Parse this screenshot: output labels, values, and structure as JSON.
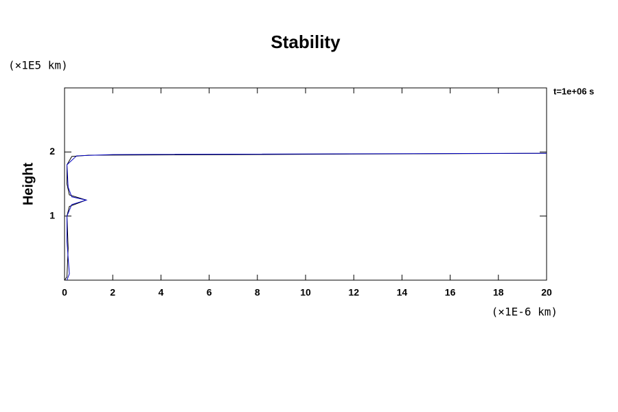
{
  "chart_data": {
    "type": "line",
    "title": "Stability",
    "y_unit": "(×1E5 km)",
    "x_unit": "(×1E-6 km)",
    "y_label": "Height",
    "annotation": "t=1e+06 s",
    "xlim": [
      0,
      20
    ],
    "xticks": [
      0,
      2,
      4,
      6,
      8,
      10,
      12,
      14,
      16,
      18,
      20
    ],
    "ylim": [
      0,
      3
    ],
    "yticks": [
      1,
      2
    ],
    "series": [
      {
        "color": "#000000",
        "x": [
          0,
          0.1,
          0.15,
          0.1,
          0.2,
          0.9,
          0.2,
          0.1,
          0.1,
          0.3,
          1,
          20
        ],
        "values": [
          0,
          0.05,
          0.5,
          1.0,
          1.15,
          1.25,
          1.33,
          1.5,
          1.8,
          1.93,
          1.95,
          1.98
        ]
      },
      {
        "color": "#0000c0",
        "x": [
          0.1,
          0.2,
          0.1,
          0.1,
          0.3,
          0.9,
          0.3,
          0.15,
          0.1,
          0.5,
          2,
          20
        ],
        "values": [
          0,
          0.1,
          0.6,
          1.0,
          1.18,
          1.25,
          1.3,
          1.45,
          1.8,
          1.94,
          1.96,
          1.98
        ]
      }
    ]
  }
}
